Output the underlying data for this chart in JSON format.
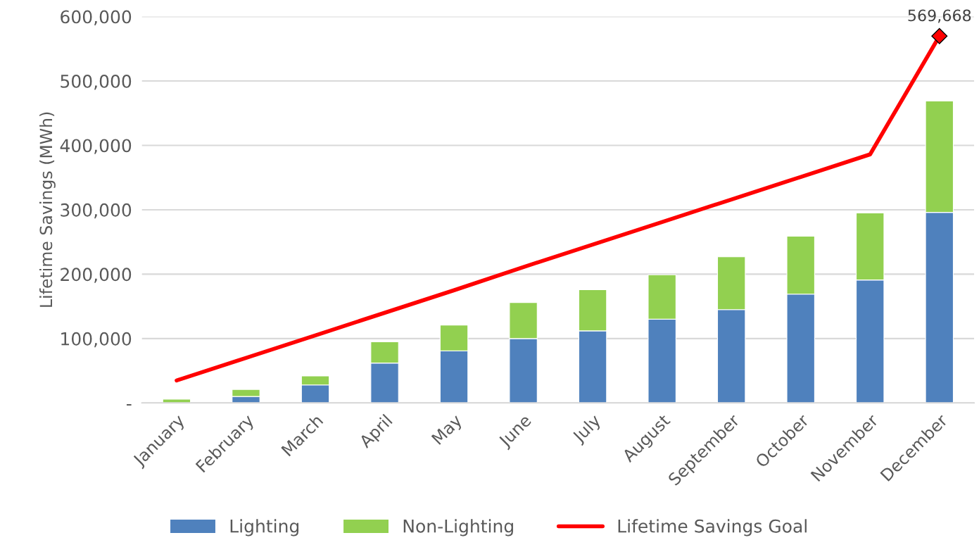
{
  "chart_data": {
    "type": "bar",
    "stacked": true,
    "ylabel": "Lifetime Savings (MWh)",
    "categories": [
      "January",
      "February",
      "March",
      "April",
      "May",
      "June",
      "July",
      "August",
      "September",
      "October",
      "November",
      "December"
    ],
    "series": [
      {
        "name": "Lighting",
        "color": "#4f81bd",
        "values": [
          null,
          10000,
          28000,
          62000,
          81000,
          100000,
          112000,
          130000,
          145000,
          169000,
          191000,
          296000
        ]
      },
      {
        "name": "Non-Lighting",
        "color": "#92d050",
        "values": [
          6000,
          11000,
          14000,
          33000,
          40000,
          56000,
          64000,
          69000,
          82000,
          90000,
          104000,
          173000
        ]
      },
      {
        "name": "Lifetime Savings Goal",
        "type": "line",
        "color": "#ff0000",
        "values": [
          35000,
          70000,
          105000,
          140000,
          175000,
          211000,
          246000,
          281000,
          316000,
          351000,
          386000,
          569668
        ],
        "value_labels": [
          null,
          null,
          null,
          null,
          null,
          null,
          null,
          null,
          null,
          null,
          null,
          "569,668"
        ]
      }
    ],
    "ylim": [
      0,
      600000
    ],
    "yticks": [
      {
        "value": 0,
        "label": "-"
      },
      {
        "value": 100000,
        "label": "100,000"
      },
      {
        "value": 200000,
        "label": "200,000"
      },
      {
        "value": 300000,
        "label": "300,000"
      },
      {
        "value": 400000,
        "label": "400,000"
      },
      {
        "value": 500000,
        "label": "500,000"
      },
      {
        "value": 600000,
        "label": "600,000"
      }
    ],
    "grid": "y",
    "legend": "bottom"
  }
}
